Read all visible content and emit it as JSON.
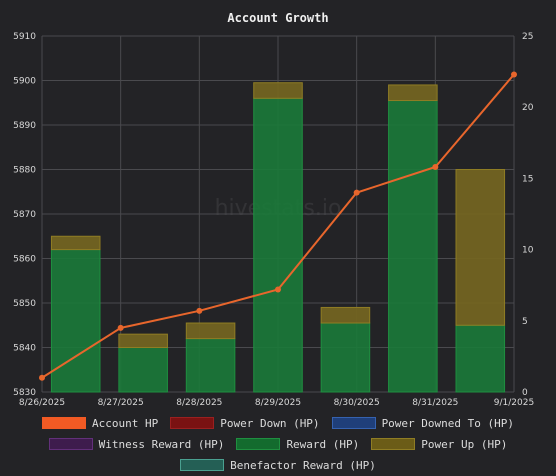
{
  "chart_data": {
    "type": "bar",
    "title": "Account Growth",
    "watermark": "hivestats.io",
    "categories": [
      "8/26/2025",
      "8/27/2025",
      "8/28/2025",
      "8/29/2025",
      "8/30/2025",
      "8/31/2025",
      "9/1/2025"
    ],
    "y_left": {
      "min": 5830,
      "max": 5910,
      "step": 10
    },
    "y_right": {
      "min": 0,
      "max": 25,
      "step": 5
    },
    "bars": [
      {
        "category": "8/26/2025",
        "base_hp": 5862,
        "power_up_top": 5865
      },
      {
        "category": "8/27/2025",
        "base_hp": 5840,
        "power_up_top": 5843
      },
      {
        "category": "8/28/2025",
        "base_hp": 5842,
        "power_up_top": 5845.5
      },
      {
        "category": "8/29/2025",
        "base_hp": 5896,
        "power_up_top": 5899.5
      },
      {
        "category": "8/30/2025",
        "base_hp": 5845.5,
        "power_up_top": 5849
      },
      {
        "category": "8/31/2025",
        "base_hp": 5895.5,
        "power_up_top": 5899
      },
      {
        "category": "9/1/2025",
        "base_hp": 5845,
        "power_up_top": 5880
      }
    ],
    "line_series": {
      "name": "Account HP",
      "axis": "right",
      "values": [
        1,
        4.5,
        5.7,
        7.2,
        14,
        15.8,
        22.3
      ]
    },
    "grid": true,
    "legend_position": "bottom",
    "colors": {
      "account_hp": "#e8662c",
      "power_down": "#7a1717",
      "power_downed_to": "#27487d",
      "witness_reward": "#4a2358",
      "reward": "#1b7a3a",
      "power_up": "#736421",
      "benefactor_reward": "#2f6b62"
    }
  },
  "legend": [
    [
      {
        "label": "Account HP",
        "fill": "#f15a24",
        "border": "#f15a24"
      },
      {
        "label": "Power Down (HP)",
        "fill": "#7a1212",
        "border": "#9a2020"
      },
      {
        "label": "Power Downed To (HP)",
        "fill": "#1f3f7a",
        "border": "#3562b0"
      }
    ],
    [
      {
        "label": "Witness Reward (HP)",
        "fill": "#3e1c4d",
        "border": "#62307a"
      },
      {
        "label": "Reward (HP)",
        "fill": "#136b2e",
        "border": "#1f8f40"
      },
      {
        "label": "Power Up (HP)",
        "fill": "#6b5c17",
        "border": "#8f7d24"
      }
    ],
    [
      {
        "label": "Benefactor Reward (HP)",
        "fill": "#245f55",
        "border": "#4aa090"
      }
    ]
  ]
}
